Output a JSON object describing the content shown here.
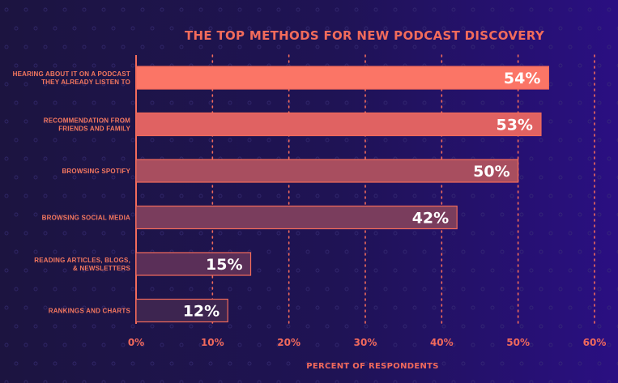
{
  "chart_data": {
    "type": "bar",
    "orientation": "horizontal",
    "title": "THE TOP METHODS FOR NEW PODCAST DISCOVERY",
    "xlabel": "PERCENT OF RESPONDENTS",
    "ylabel": "",
    "categories": [
      [
        "HEARING ABOUT IT ON A PODCAST",
        "THEY ALREADY LISTEN TO"
      ],
      [
        "RECOMMENDATION FROM",
        "FRIENDS AND FAMILY"
      ],
      [
        "BROWSING SPOTIFY"
      ],
      [
        "BROWSING SOCIAL MEDIA"
      ],
      [
        "READING ARTICLES, BLOGS,",
        "& NEWSLETTERS"
      ],
      [
        "RANKINGS AND CHARTS"
      ]
    ],
    "values": [
      54,
      53,
      50,
      42,
      15,
      12
    ],
    "value_labels": [
      "54%",
      "53%",
      "50%",
      "42%",
      "15%",
      "12%"
    ],
    "xlim": [
      0,
      60
    ],
    "ticks": [
      "0%",
      "10%",
      "20%",
      "30%",
      "40%",
      "50%",
      "60%"
    ],
    "grid": true,
    "bar_fills": [
      "#fb7566",
      "#e06262",
      "#a84e5f",
      "#7a3d5d",
      "#5a2f58",
      "#3d2550"
    ],
    "bar_stroke": "#f26b5b",
    "text_color": "#f26b5b"
  }
}
